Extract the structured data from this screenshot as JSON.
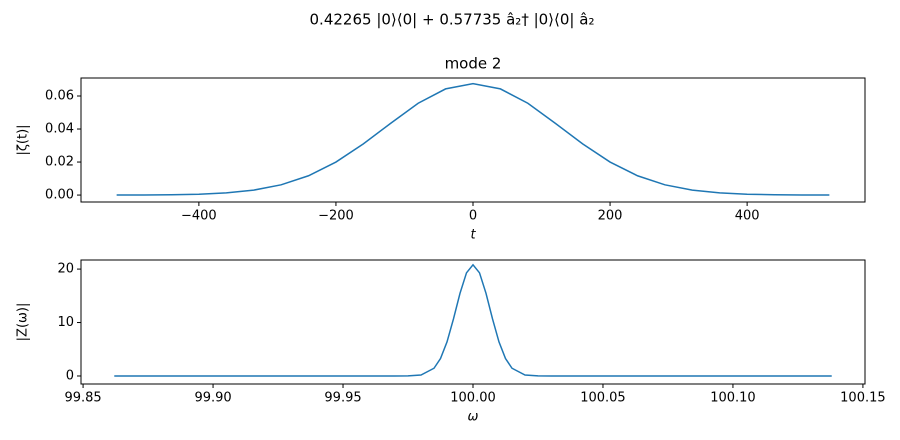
{
  "figure_title": "0.42265 |0⟩⟨0| + 0.57735 â₂† |0⟩⟨0| â₂",
  "chart_data": [
    {
      "type": "line",
      "title": "mode 2",
      "x_label": "t",
      "y_label": "|ζ(t)|",
      "x": [
        -520,
        -480,
        -440,
        -400,
        -360,
        -320,
        -280,
        -240,
        -200,
        -160,
        -120,
        -80,
        -40,
        0,
        40,
        80,
        120,
        160,
        200,
        240,
        280,
        320,
        360,
        400,
        440,
        480,
        520
      ],
      "series": [
        {
          "name": "|ζ(t)|",
          "color": "#1f77b4",
          "values": [
            2e-05,
            6e-05,
            0.00019,
            0.00052,
            0.0013,
            0.003,
            0.0062,
            0.0117,
            0.02,
            0.031,
            0.0435,
            0.0556,
            0.0643,
            0.0675,
            0.0643,
            0.0556,
            0.0435,
            0.031,
            0.02,
            0.0117,
            0.0062,
            0.003,
            0.0013,
            0.00052,
            0.00019,
            6e-05,
            2e-05
          ]
        }
      ],
      "xlim": [
        -572,
        572
      ],
      "xticks": [
        {
          "value": -400,
          "label": "−400"
        },
        {
          "value": -200,
          "label": "−200"
        },
        0,
        200,
        400
      ],
      "ylim": [
        -0.0042,
        0.0709
      ],
      "yticks": [
        {
          "value": 0,
          "label": "0.00"
        },
        {
          "value": 0.02,
          "label": "0.02"
        },
        {
          "value": 0.04,
          "label": "0.04"
        },
        {
          "value": 0.06,
          "label": "0.06"
        }
      ]
    },
    {
      "type": "line",
      "x_label": "ω",
      "y_label": "|Z(ω)|",
      "x": [
        99.862,
        99.9,
        99.95,
        99.97,
        99.975,
        99.98,
        99.985,
        99.9875,
        99.99,
        99.9925,
        99.995,
        99.9975,
        100,
        100.0025,
        100.005,
        100.0075,
        100.01,
        100.0125,
        100.015,
        100.02,
        100.025,
        100.03,
        100.05,
        100.1,
        100.138
      ],
      "series": [
        {
          "name": "|Z(ω)|",
          "color": "#1f77b4",
          "values": [
            0,
            0,
            0,
            0,
            0.01,
            0.18,
            1.45,
            3.27,
            6.37,
            10.69,
            15.47,
            19.3,
            20.8,
            19.3,
            15.47,
            10.69,
            6.37,
            3.27,
            1.45,
            0.18,
            0.01,
            0,
            0,
            0,
            0
          ]
        }
      ],
      "xlim": [
        99.8492,
        100.1508
      ],
      "xticks": [
        99.85,
        {
          "value": 99.9,
          "label": "99.90"
        },
        99.95,
        {
          "value": 100,
          "label": "100.00"
        },
        100.05,
        {
          "value": 100.1,
          "label": "100.10"
        },
        100.15
      ],
      "ylim": [
        -1.5,
        21.7
      ],
      "yticks": [
        0,
        10,
        20
      ]
    }
  ]
}
